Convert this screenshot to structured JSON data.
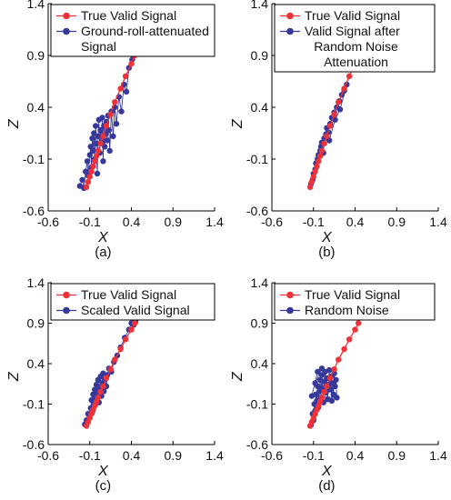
{
  "chart_data": [
    {
      "type": "scatter",
      "panel_label": "(a)",
      "xlabel": "X",
      "ylabel": "Z",
      "xlim": [
        -0.6,
        1.4
      ],
      "ylim": [
        -0.6,
        1.4
      ],
      "xticks": [
        "-0.6",
        "-0.1",
        "0.4",
        "0.9",
        "1.4"
      ],
      "yticks": [
        "-0.6",
        "-0.1",
        "0.4",
        "0.9",
        "1.4"
      ],
      "legend_position": "top",
      "grid": false,
      "series": [
        {
          "name": "True Valid Signal",
          "color": "#ee3338",
          "points": [
            [
              -0.14,
              -0.37
            ],
            [
              -0.12,
              -0.32
            ],
            [
              -0.1,
              -0.27
            ],
            [
              -0.08,
              -0.22
            ],
            [
              -0.06,
              -0.17
            ],
            [
              -0.04,
              -0.12
            ],
            [
              -0.02,
              -0.07
            ],
            [
              0.0,
              -0.02
            ],
            [
              0.03,
              0.05
            ],
            [
              0.06,
              0.12
            ],
            [
              0.1,
              0.22
            ],
            [
              0.15,
              0.33
            ],
            [
              0.2,
              0.45
            ],
            [
              0.27,
              0.58
            ],
            [
              0.33,
              0.7
            ],
            [
              0.4,
              0.82
            ],
            [
              0.44,
              0.9
            ]
          ]
        },
        {
          "name": "Ground-roll-attenuated Signal",
          "color": "#36399b",
          "points": [
            [
              -0.22,
              -0.36
            ],
            [
              -0.19,
              -0.3
            ],
            [
              -0.17,
              -0.38
            ],
            [
              -0.15,
              -0.22
            ],
            [
              -0.13,
              -0.12
            ],
            [
              -0.12,
              -0.26
            ],
            [
              -0.1,
              -0.06
            ],
            [
              -0.09,
              0.02
            ],
            [
              -0.08,
              -0.18
            ],
            [
              -0.07,
              0.1
            ],
            [
              -0.06,
              -0.02
            ],
            [
              -0.05,
              0.15
            ],
            [
              -0.04,
              -0.1
            ],
            [
              -0.03,
              0.22
            ],
            [
              -0.02,
              0.05
            ],
            [
              -0.01,
              -0.24
            ],
            [
              0.0,
              0.12
            ],
            [
              0.01,
              0.28
            ],
            [
              0.02,
              -0.04
            ],
            [
              0.03,
              0.18
            ],
            [
              0.04,
              0.06
            ],
            [
              0.05,
              0.3
            ],
            [
              0.06,
              -0.12
            ],
            [
              0.07,
              0.22
            ],
            [
              0.08,
              0.02
            ],
            [
              0.09,
              0.14
            ],
            [
              0.1,
              0.26
            ],
            [
              0.11,
              0.08
            ],
            [
              0.12,
              0.32
            ],
            [
              0.13,
              0.18
            ],
            [
              0.14,
              -0.02
            ],
            [
              0.16,
              0.36
            ],
            [
              0.18,
              0.12
            ],
            [
              0.2,
              0.4
            ],
            [
              0.22,
              0.24
            ],
            [
              0.25,
              0.5
            ],
            [
              0.28,
              0.36
            ],
            [
              0.31,
              0.62
            ],
            [
              0.34,
              0.55
            ],
            [
              0.37,
              0.78
            ],
            [
              0.41,
              0.86
            ],
            [
              0.45,
              1.0
            ],
            [
              0.47,
              0.93
            ],
            [
              0.48,
              1.22
            ],
            [
              0.44,
              1.1
            ],
            [
              0.38,
              0.98
            ]
          ]
        }
      ]
    },
    {
      "type": "scatter",
      "panel_label": "(b)",
      "xlabel": "X",
      "ylabel": "Z",
      "xlim": [
        -0.6,
        1.4
      ],
      "ylim": [
        -0.6,
        1.4
      ],
      "xticks": [
        "-0.6",
        "-0.1",
        "0.4",
        "0.9",
        "1.4"
      ],
      "yticks": [
        "-0.6",
        "-0.1",
        "0.4",
        "0.9",
        "1.4"
      ],
      "legend_position": "top",
      "grid": false,
      "series": [
        {
          "name": "True Valid Signal",
          "color": "#ee3338",
          "points": [
            [
              -0.14,
              -0.37
            ],
            [
              -0.12,
              -0.32
            ],
            [
              -0.1,
              -0.27
            ],
            [
              -0.08,
              -0.22
            ],
            [
              -0.06,
              -0.17
            ],
            [
              -0.04,
              -0.12
            ],
            [
              -0.02,
              -0.07
            ],
            [
              0.0,
              -0.02
            ],
            [
              0.03,
              0.05
            ],
            [
              0.06,
              0.12
            ],
            [
              0.1,
              0.22
            ],
            [
              0.15,
              0.33
            ],
            [
              0.2,
              0.45
            ],
            [
              0.27,
              0.58
            ],
            [
              0.33,
              0.7
            ],
            [
              0.4,
              0.82
            ],
            [
              0.44,
              0.9
            ]
          ]
        },
        {
          "name": "Valid Signal after Random Noise Attenuation",
          "color": "#36399b",
          "points": [
            [
              -0.13,
              -0.34
            ],
            [
              -0.11,
              -0.3
            ],
            [
              -0.1,
              -0.24
            ],
            [
              -0.08,
              -0.2
            ],
            [
              -0.07,
              -0.14
            ],
            [
              -0.05,
              -0.1
            ],
            [
              -0.04,
              -0.06
            ],
            [
              -0.02,
              -0.02
            ],
            [
              -0.01,
              0.02
            ],
            [
              0.0,
              0.06
            ],
            [
              0.02,
              -0.04
            ],
            [
              0.03,
              0.1
            ],
            [
              0.05,
              0.14
            ],
            [
              0.06,
              0.2
            ],
            [
              0.08,
              0.16
            ],
            [
              0.1,
              0.24
            ],
            [
              0.12,
              0.3
            ],
            [
              0.15,
              0.35
            ],
            [
              0.18,
              0.4
            ],
            [
              0.21,
              0.46
            ],
            [
              0.24,
              0.52
            ],
            [
              0.27,
              0.56
            ],
            [
              0.3,
              0.62
            ],
            [
              0.22,
              0.38
            ],
            [
              0.16,
              0.28
            ],
            [
              0.09,
              0.08
            ]
          ]
        }
      ]
    },
    {
      "type": "scatter",
      "panel_label": "(c)",
      "xlabel": "X",
      "ylabel": "Z",
      "xlim": [
        -0.6,
        1.4
      ],
      "ylim": [
        -0.6,
        1.4
      ],
      "xticks": [
        "-0.6",
        "-0.1",
        "0.4",
        "0.9",
        "1.4"
      ],
      "yticks": [
        "-0.6",
        "-0.1",
        "0.4",
        "0.9",
        "1.4"
      ],
      "legend_position": "top",
      "grid": false,
      "series": [
        {
          "name": "True Valid Signal",
          "color": "#ee3338",
          "points": [
            [
              -0.14,
              -0.37
            ],
            [
              -0.12,
              -0.32
            ],
            [
              -0.1,
              -0.27
            ],
            [
              -0.08,
              -0.22
            ],
            [
              -0.06,
              -0.17
            ],
            [
              -0.04,
              -0.12
            ],
            [
              -0.02,
              -0.07
            ],
            [
              0.0,
              -0.02
            ],
            [
              0.03,
              0.05
            ],
            [
              0.06,
              0.12
            ],
            [
              0.1,
              0.22
            ],
            [
              0.15,
              0.33
            ],
            [
              0.2,
              0.45
            ],
            [
              0.27,
              0.58
            ],
            [
              0.33,
              0.7
            ],
            [
              0.4,
              0.82
            ],
            [
              0.44,
              0.9
            ]
          ]
        },
        {
          "name": "Scaled Valid Signal",
          "color": "#36399b",
          "points": [
            [
              -0.16,
              -0.35
            ],
            [
              -0.14,
              -0.3
            ],
            [
              -0.12,
              -0.22
            ],
            [
              -0.11,
              -0.28
            ],
            [
              -0.09,
              -0.15
            ],
            [
              -0.08,
              -0.05
            ],
            [
              -0.07,
              -0.2
            ],
            [
              -0.06,
              0.02
            ],
            [
              -0.05,
              -0.1
            ],
            [
              -0.04,
              0.08
            ],
            [
              -0.03,
              -0.03
            ],
            [
              -0.02,
              0.14
            ],
            [
              -0.01,
              0.04
            ],
            [
              0.0,
              0.2
            ],
            [
              0.01,
              -0.08
            ],
            [
              0.02,
              0.1
            ],
            [
              0.03,
              0.24
            ],
            [
              0.04,
              0.0
            ],
            [
              0.05,
              0.16
            ],
            [
              0.06,
              0.28
            ],
            [
              0.07,
              0.06
            ],
            [
              0.08,
              0.2
            ],
            [
              0.1,
              0.12
            ],
            [
              0.11,
              0.26
            ],
            [
              0.13,
              0.34
            ],
            [
              0.16,
              0.3
            ],
            [
              0.19,
              0.42
            ],
            [
              0.23,
              0.5
            ],
            [
              0.27,
              0.6
            ],
            [
              0.32,
              0.72
            ],
            [
              0.37,
              0.82
            ],
            [
              0.4,
              0.9
            ],
            [
              0.43,
              0.88
            ],
            [
              0.45,
              0.92
            ]
          ]
        }
      ]
    },
    {
      "type": "scatter",
      "panel_label": "(d)",
      "xlabel": "X",
      "ylabel": "Z",
      "xlim": [
        -0.6,
        1.4
      ],
      "ylim": [
        -0.6,
        1.4
      ],
      "xticks": [
        "-0.6",
        "-0.1",
        "0.4",
        "0.9",
        "1.4"
      ],
      "yticks": [
        "-0.6",
        "-0.1",
        "0.4",
        "0.9",
        "1.4"
      ],
      "legend_position": "top",
      "grid": false,
      "series": [
        {
          "name": "True Valid Signal",
          "color": "#ee3338",
          "points": [
            [
              -0.14,
              -0.37
            ],
            [
              -0.12,
              -0.32
            ],
            [
              -0.1,
              -0.27
            ],
            [
              -0.08,
              -0.22
            ],
            [
              -0.06,
              -0.17
            ],
            [
              -0.04,
              -0.12
            ],
            [
              -0.02,
              -0.07
            ],
            [
              0.0,
              -0.02
            ],
            [
              0.03,
              0.05
            ],
            [
              0.06,
              0.12
            ],
            [
              0.1,
              0.22
            ],
            [
              0.15,
              0.33
            ],
            [
              0.2,
              0.45
            ],
            [
              0.27,
              0.58
            ],
            [
              0.33,
              0.7
            ],
            [
              0.4,
              0.82
            ],
            [
              0.44,
              0.9
            ]
          ]
        },
        {
          "name": "Random Noise",
          "color": "#36399b",
          "points": [
            [
              -0.13,
              -0.36
            ],
            [
              -0.11,
              -0.22
            ],
            [
              -0.1,
              -0.3
            ],
            [
              -0.09,
              -0.1
            ],
            [
              -0.08,
              -0.18
            ],
            [
              -0.07,
              0.02
            ],
            [
              -0.06,
              -0.06
            ],
            [
              -0.05,
              0.12
            ],
            [
              -0.04,
              -0.14
            ],
            [
              -0.03,
              0.06
            ],
            [
              -0.02,
              0.2
            ],
            [
              -0.01,
              -0.02
            ],
            [
              0.0,
              0.26
            ],
            [
              0.01,
              0.1
            ],
            [
              0.02,
              -0.08
            ],
            [
              0.03,
              0.18
            ],
            [
              0.04,
              0.3
            ],
            [
              0.05,
              0.04
            ],
            [
              0.06,
              0.22
            ],
            [
              0.07,
              -0.04
            ],
            [
              0.08,
              0.14
            ],
            [
              0.09,
              0.32
            ],
            [
              0.1,
              0.08
            ],
            [
              0.11,
              0.24
            ],
            [
              0.12,
              -0.06
            ],
            [
              0.13,
              0.16
            ],
            [
              0.14,
              0.02
            ],
            [
              0.15,
              0.28
            ],
            [
              0.16,
              0.12
            ],
            [
              0.17,
              0.2
            ],
            [
              0.18,
              -0.02
            ],
            [
              -0.12,
              0.0
            ],
            [
              -0.05,
              0.3
            ],
            [
              0.0,
              0.34
            ],
            [
              -0.08,
              0.16
            ]
          ]
        }
      ]
    }
  ]
}
